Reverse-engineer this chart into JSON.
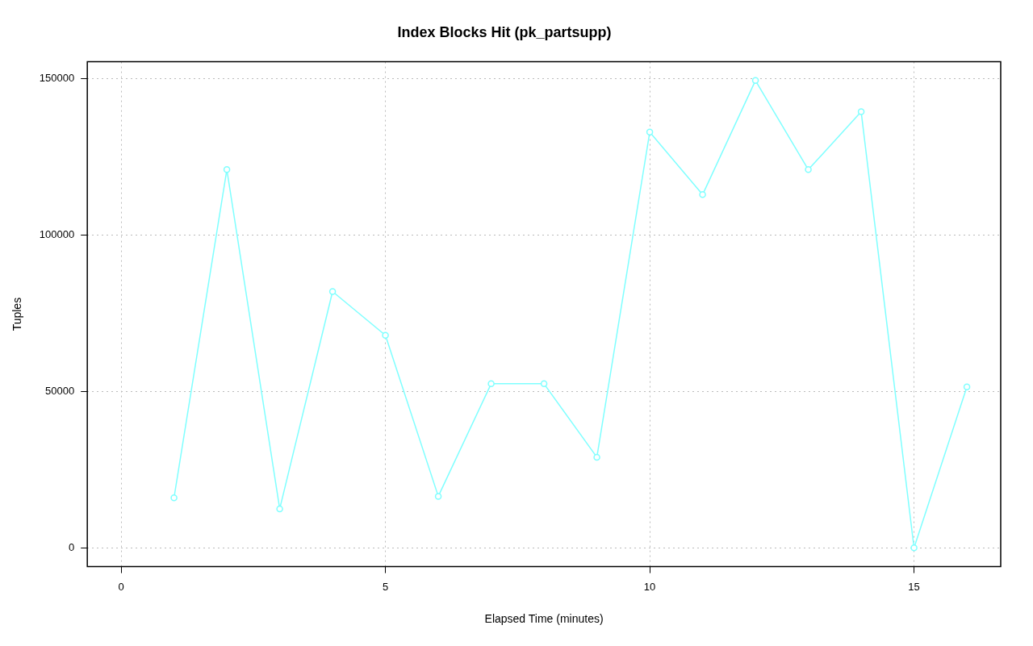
{
  "chart_data": {
    "type": "line",
    "title": "Index Blocks Hit (pk_partsupp)",
    "xlabel": "Elapsed Time (minutes)",
    "ylabel": "Tuples",
    "x": [
      1,
      2,
      3,
      4,
      5,
      6,
      7,
      8,
      9,
      10,
      11,
      12,
      13,
      14,
      15,
      16
    ],
    "series": [
      {
        "color": "#7fffff",
        "values": [
          16000,
          121000,
          12500,
          82000,
          68000,
          16500,
          52500,
          52500,
          29000,
          133000,
          113000,
          149500,
          121000,
          139500,
          0,
          51500
        ]
      }
    ],
    "xlim": [
      -0.64,
      16.64
    ],
    "ylim": [
      -6000,
      155500
    ],
    "xticks": [
      0,
      5,
      10,
      15
    ],
    "yticks": [
      0,
      50000,
      100000,
      150000
    ],
    "grid": true,
    "marker": "circle",
    "line_style": "solid",
    "legend": false
  }
}
